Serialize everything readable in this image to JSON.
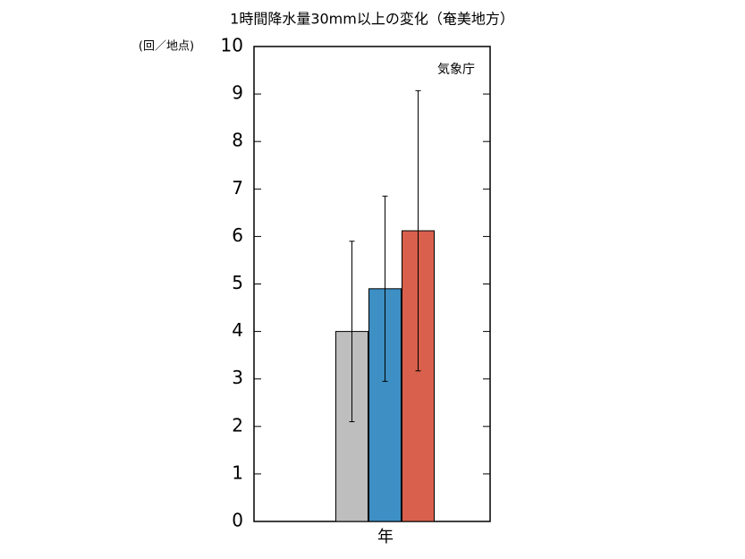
{
  "chart_data": {
    "type": "bar",
    "title": "1時間降水量30mm以上の変化（奄美地方）",
    "y_label": "(回／地点)",
    "annotation": "気象庁",
    "categories": [
      "年"
    ],
    "series": [
      {
        "color": "#bebebe",
        "values": [
          4.0
        ],
        "errors": [
          1.9
        ]
      },
      {
        "color": "#3d8fc4",
        "values": [
          4.9
        ],
        "errors": [
          1.95
        ]
      },
      {
        "color": "#d9604d",
        "values": [
          6.12
        ],
        "errors": [
          2.95
        ]
      }
    ],
    "ylim": [
      0,
      10
    ],
    "yticks": [
      0,
      1,
      2,
      3,
      4,
      5,
      6,
      7,
      8,
      9,
      10
    ]
  }
}
